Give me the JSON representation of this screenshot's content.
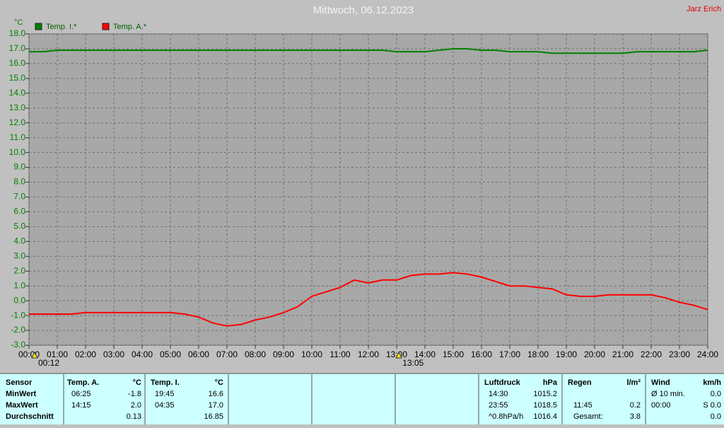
{
  "chart_data": {
    "type": "line",
    "title": "Mittwoch, 06.12.2023",
    "annotation": "Jarz Erich",
    "ylabel": "°C",
    "x": [
      0,
      0.5,
      1,
      1.5,
      2,
      2.5,
      3,
      3.5,
      4,
      4.5,
      5,
      5.5,
      6,
      6.5,
      7,
      7.5,
      8,
      8.5,
      9,
      9.5,
      10,
      10.5,
      11,
      11.5,
      12,
      12.5,
      13,
      13.5,
      14,
      14.5,
      15,
      15.5,
      16,
      16.5,
      17,
      17.5,
      18,
      18.5,
      19,
      19.5,
      20,
      20.5,
      21,
      21.5,
      22,
      22.5,
      23,
      23.5,
      24
    ],
    "series": [
      {
        "name": "Temp. I.*",
        "color": "#008000",
        "values": [
          16.8,
          16.8,
          16.9,
          16.9,
          16.9,
          16.9,
          16.9,
          16.9,
          16.9,
          16.9,
          16.9,
          16.9,
          16.9,
          16.9,
          16.9,
          16.9,
          16.9,
          16.9,
          16.9,
          16.9,
          16.9,
          16.9,
          16.9,
          16.9,
          16.9,
          16.9,
          16.8,
          16.8,
          16.8,
          16.9,
          17.0,
          17.0,
          16.9,
          16.9,
          16.8,
          16.8,
          16.8,
          16.7,
          16.7,
          16.7,
          16.7,
          16.7,
          16.7,
          16.8,
          16.8,
          16.8,
          16.8,
          16.8,
          16.9
        ]
      },
      {
        "name": "Temp. A.*",
        "color": "#ff0000",
        "values": [
          -0.9,
          -0.9,
          -0.9,
          -0.9,
          -0.8,
          -0.8,
          -0.8,
          -0.8,
          -0.8,
          -0.8,
          -0.8,
          -0.9,
          -1.1,
          -1.5,
          -1.7,
          -1.6,
          -1.3,
          -1.1,
          -0.8,
          -0.4,
          0.3,
          0.6,
          0.9,
          1.4,
          1.2,
          1.4,
          1.4,
          1.7,
          1.8,
          1.8,
          1.9,
          1.8,
          1.6,
          1.3,
          1.0,
          1.0,
          0.9,
          0.8,
          0.4,
          0.3,
          0.3,
          0.4,
          0.4,
          0.4,
          0.4,
          0.2,
          -0.1,
          -0.3,
          -0.6
        ]
      }
    ],
    "xlim": [
      0,
      24
    ],
    "ylim": [
      -3,
      18
    ],
    "xticks": [
      {
        "value": 0,
        "label": "00:00"
      },
      {
        "value": 1,
        "label": "01:00"
      },
      {
        "value": 2,
        "label": "02:00"
      },
      {
        "value": 3,
        "label": "03:00"
      },
      {
        "value": 4,
        "label": "04:00"
      },
      {
        "value": 5,
        "label": "05:00"
      },
      {
        "value": 6,
        "label": "06:00"
      },
      {
        "value": 7,
        "label": "07:00"
      },
      {
        "value": 8,
        "label": "08:00"
      },
      {
        "value": 9,
        "label": "09:00"
      },
      {
        "value": 10,
        "label": "10:00"
      },
      {
        "value": 11,
        "label": "11:00"
      },
      {
        "value": 12,
        "label": "12:00"
      },
      {
        "value": 13,
        "label": "13:00"
      },
      {
        "value": 14,
        "label": "14:00"
      },
      {
        "value": 15,
        "label": "15:00"
      },
      {
        "value": 16,
        "label": "16:00"
      },
      {
        "value": 17,
        "label": "17:00"
      },
      {
        "value": 18,
        "label": "18:00"
      },
      {
        "value": 19,
        "label": "19:00"
      },
      {
        "value": 20,
        "label": "20:00"
      },
      {
        "value": 21,
        "label": "21:00"
      },
      {
        "value": 22,
        "label": "22:00"
      },
      {
        "value": 23,
        "label": "23:00"
      },
      {
        "value": 24,
        "label": "24:00"
      }
    ],
    "yticks": [
      {
        "value": -3,
        "label": "-3.0"
      },
      {
        "value": -2,
        "label": "-2.0"
      },
      {
        "value": -1,
        "label": "-1.0"
      },
      {
        "value": 0,
        "label": "0.0"
      },
      {
        "value": 1,
        "label": "1.0"
      },
      {
        "value": 2,
        "label": "2.0"
      },
      {
        "value": 3,
        "label": "3.0"
      },
      {
        "value": 4,
        "label": "4.0"
      },
      {
        "value": 5,
        "label": "5.0"
      },
      {
        "value": 6,
        "label": "6.0"
      },
      {
        "value": 7,
        "label": "7.0"
      },
      {
        "value": 8,
        "label": "8.0"
      },
      {
        "value": 9,
        "label": "9.0"
      },
      {
        "value": 10,
        "label": "10.0"
      },
      {
        "value": 11,
        "label": "11.0"
      },
      {
        "value": 12,
        "label": "12.0"
      },
      {
        "value": 13,
        "label": "13.0"
      },
      {
        "value": 14,
        "label": "14.0"
      },
      {
        "value": 15,
        "label": "15.0"
      },
      {
        "value": 16,
        "label": "16.0"
      },
      {
        "value": 17,
        "label": "17.0"
      },
      {
        "value": 18,
        "label": "18.0"
      }
    ],
    "markers": [
      {
        "x": 0.2,
        "label": "00:12"
      },
      {
        "x": 13.08,
        "label": "13:05"
      }
    ],
    "grid": true
  },
  "table": {
    "sensor": {
      "header": "Sensor",
      "rows": [
        "MinWert",
        "MaxWert",
        "Durchschnitt"
      ]
    },
    "groups": [
      {
        "name": "Temp. A.",
        "unit": "°C",
        "rows": [
          [
            "06:25",
            "-1.8"
          ],
          [
            "14:15",
            "2.0"
          ],
          [
            null,
            "0.13"
          ]
        ]
      },
      {
        "name": "Temp. I.",
        "unit": "°C",
        "rows": [
          [
            "19:45",
            "16.6"
          ],
          [
            "04:35",
            "17.0"
          ],
          [
            null,
            "16.85"
          ]
        ]
      },
      {
        "name": "Luftdruck",
        "unit": "hPa",
        "rows": [
          [
            "14:30",
            "1015.2"
          ],
          [
            "23:55",
            "1018.5"
          ],
          [
            "^0.8hPa/h",
            "1016.4"
          ]
        ]
      },
      {
        "name": "Regen",
        "unit": "l/m²",
        "rows": [
          [
            null,
            null
          ],
          [
            "11:45",
            "0.2"
          ],
          [
            "Gesamt:",
            "3.8"
          ]
        ]
      },
      {
        "name": "Wind",
        "unit": "km/h",
        "rows": [
          [
            "Ø 10 min.",
            "0.0"
          ],
          [
            "00:00",
            "S 0.0"
          ],
          [
            null,
            "0.0"
          ]
        ]
      }
    ]
  }
}
